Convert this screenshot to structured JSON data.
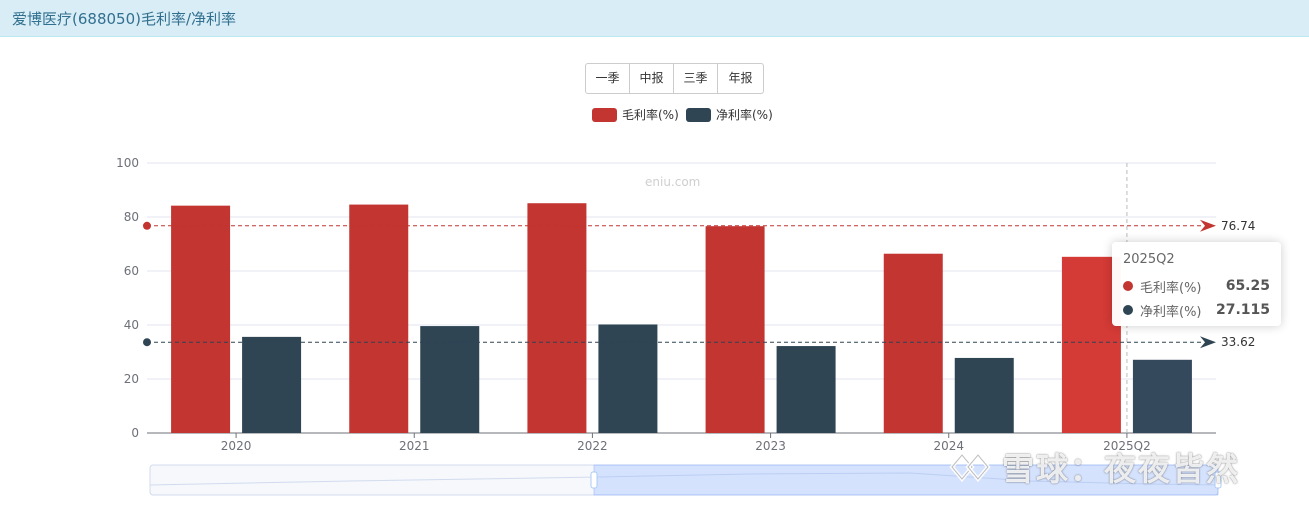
{
  "header": {
    "title": "爱博医疗(688050)毛利率/净利率"
  },
  "period_buttons": [
    "一季",
    "中报",
    "三季",
    "年报"
  ],
  "legend": [
    {
      "label": "毛利率(%)",
      "color": "#c23531"
    },
    {
      "label": "净利率(%)",
      "color": "#2f4554"
    }
  ],
  "watermark": "eniu.com",
  "tooltip": {
    "title": "2025Q2",
    "rows": [
      {
        "name": "毛利率(%)",
        "value": "65.25",
        "color": "#c23531"
      },
      {
        "name": "净利率(%)",
        "value": "27.115",
        "color": "#2f4554"
      }
    ]
  },
  "brand": {
    "text": "雪球：夜夜皆然"
  },
  "chart_data": {
    "type": "bar",
    "categories": [
      "2020",
      "2021",
      "2022",
      "2023",
      "2024",
      "2025Q2"
    ],
    "series": [
      {
        "name": "毛利率(%)",
        "color": "#c23531",
        "values": [
          84.2,
          84.6,
          85.1,
          76.6,
          66.4,
          65.25
        ]
      },
      {
        "name": "净利率(%)",
        "color": "#2f4554",
        "values": [
          35.6,
          39.6,
          40.2,
          32.2,
          27.8,
          27.115
        ]
      }
    ],
    "ylim": [
      0,
      100
    ],
    "yticks": [
      0,
      20,
      40,
      60,
      80,
      100
    ],
    "markLines": [
      {
        "value": 76.74,
        "label": "76.74",
        "color": "#c23531"
      },
      {
        "value": 33.62,
        "label": "33.62",
        "color": "#2f4554"
      }
    ],
    "highlighted_category": "2025Q2",
    "grid": true,
    "legend_position": "top-center"
  }
}
